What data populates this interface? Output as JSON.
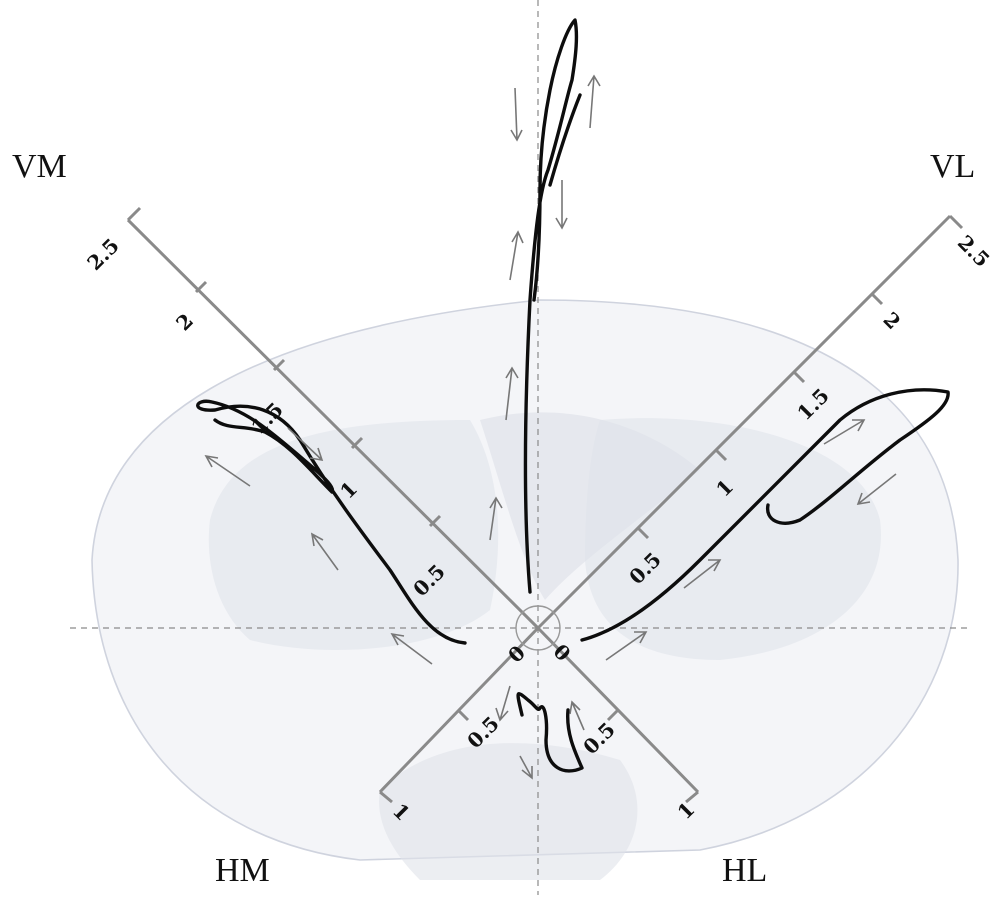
{
  "labels": {
    "vm": "VM",
    "vl": "VL",
    "hm": "HM",
    "hl": "HL"
  },
  "axes": {
    "vm": {
      "ticks": [
        "0",
        "0.5",
        "1",
        "1.5",
        "2",
        "2.5"
      ]
    },
    "vl": {
      "ticks": [
        "0",
        "0.5",
        "1",
        "1.5",
        "2",
        "2.5"
      ]
    },
    "hm": {
      "ticks": [
        "0.5",
        "1"
      ]
    },
    "hl": {
      "ticks": [
        "0.5",
        "1"
      ]
    }
  },
  "colors": {
    "trace": "#0d0d0d",
    "axis": "#8a8a8a",
    "background_anatomy": "#dfe2ea"
  }
}
